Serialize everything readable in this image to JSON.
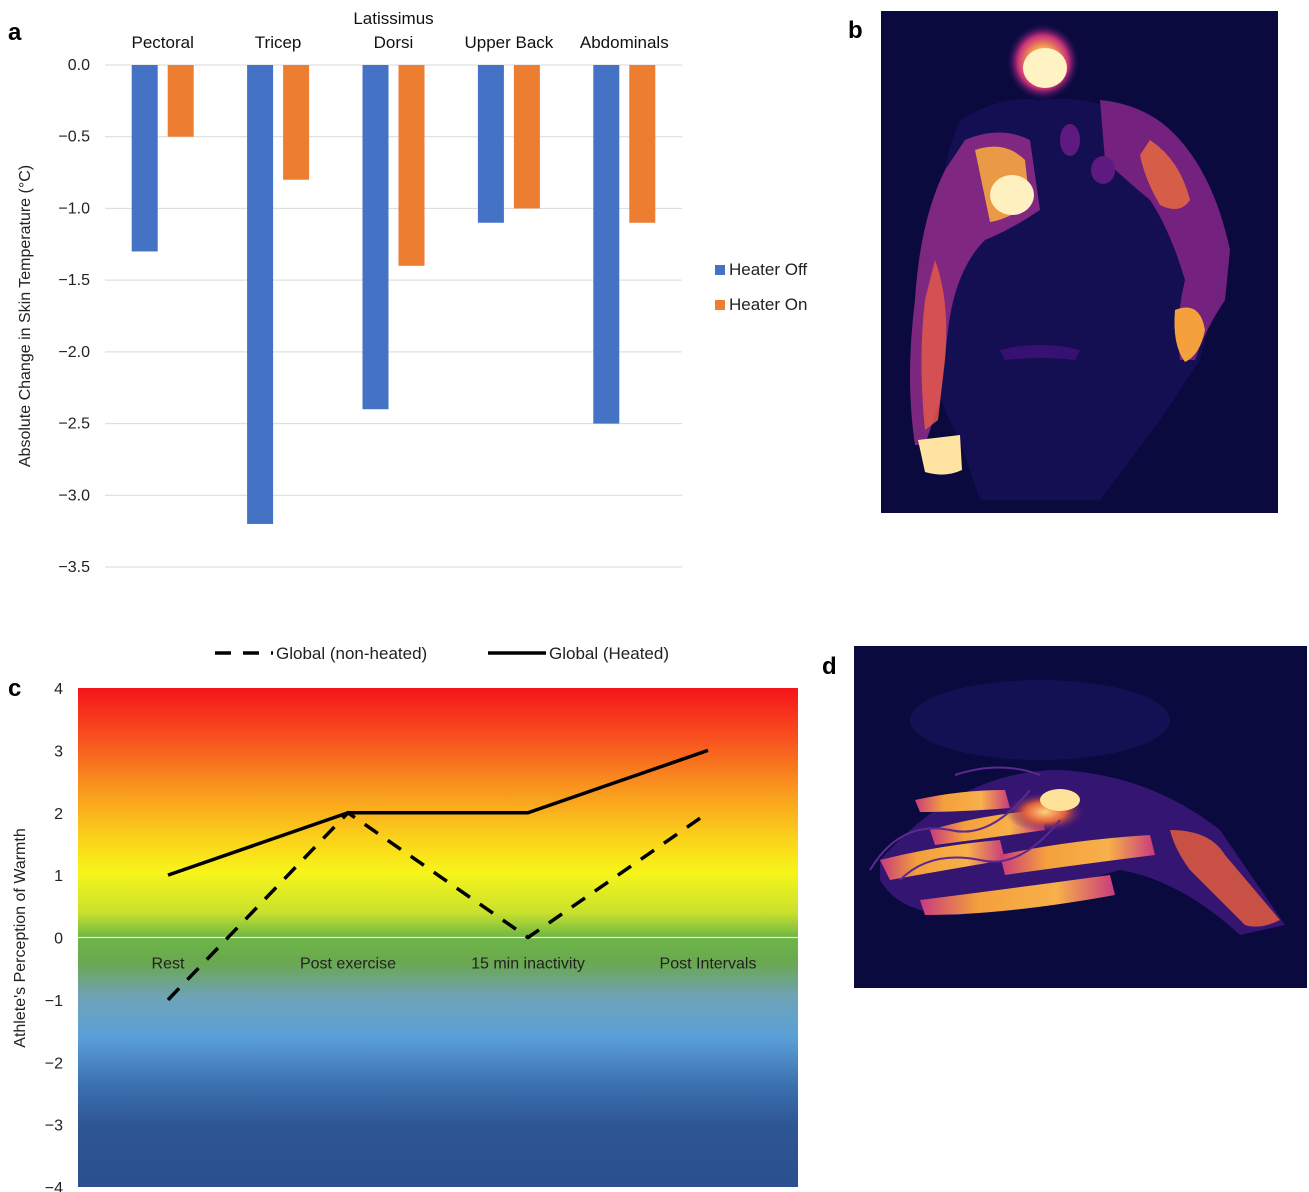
{
  "panels": {
    "a": "a",
    "b": "b",
    "c": "c",
    "d": "d"
  },
  "colors": {
    "heater_off": "#4472C4",
    "heater_on": "#ED7D31",
    "grid": "#d9d9d9",
    "thermal_bg": "#0b0a3f"
  },
  "chart_data": [
    {
      "id": "a",
      "type": "bar",
      "title": "",
      "ylabel": "Absolute  Change in Skin Temperature (°C)",
      "ylim": [
        -3.5,
        0
      ],
      "yticks": [
        "0.0",
        "−0.5",
        "−1.0",
        "−1.5",
        "−2.0",
        "−2.5",
        "−3.0",
        "−3.5"
      ],
      "ytick_values": [
        0,
        -0.5,
        -1.0,
        -1.5,
        -2.0,
        -2.5,
        -3.0,
        -3.5
      ],
      "grid": true,
      "legend_position": "right",
      "categories": [
        "Pectoral",
        "Tricep",
        "Latissimus Dorsi",
        "Upper Back",
        "Abdominals"
      ],
      "category_lines": [
        [
          "Pectoral"
        ],
        [
          "Tricep"
        ],
        [
          "Latissimus",
          "Dorsi"
        ],
        [
          "Upper Back"
        ],
        [
          "Abdominals"
        ]
      ],
      "series": [
        {
          "name": "Heater Off",
          "color": "#4472C4",
          "values": [
            -1.3,
            -3.2,
            -2.4,
            -1.1,
            -2.5
          ]
        },
        {
          "name": "Heater On",
          "color": "#ED7D31",
          "values": [
            -0.5,
            -0.8,
            -1.4,
            -1.0,
            -1.1
          ]
        }
      ]
    },
    {
      "id": "c",
      "type": "line",
      "title": "",
      "ylabel": "Athlete's Perception of Warmth",
      "ylim": [
        -4,
        4
      ],
      "yticks": [
        "4",
        "3",
        "2",
        "1",
        "0",
        "−1",
        "−2",
        "−3",
        "−4"
      ],
      "ytick_values": [
        4,
        3,
        2,
        1,
        0,
        -1,
        -2,
        -3,
        -4
      ],
      "legend_position": "top",
      "categories": [
        "Rest",
        "Post exercise",
        "15 min inactivity",
        "Post Intervals"
      ],
      "series": [
        {
          "name": "Global (non-heated)",
          "style": "dashed",
          "values": [
            -1,
            2,
            0,
            2
          ]
        },
        {
          "name": "Global (Heated)",
          "style": "solid",
          "values": [
            1,
            2,
            2,
            3
          ]
        }
      ]
    }
  ]
}
